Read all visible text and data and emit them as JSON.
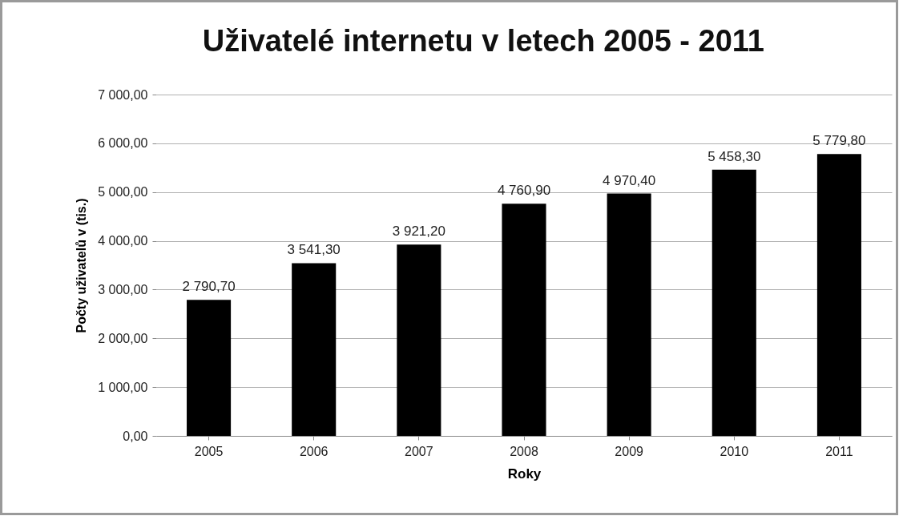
{
  "chart_data": {
    "type": "bar",
    "title": "Uživatelé internetu v letech 2005 - 2011",
    "xlabel": "Roky",
    "ylabel": "Počty uživatelů v (tis.)",
    "categories": [
      "2005",
      "2006",
      "2007",
      "2008",
      "2009",
      "2010",
      "2011"
    ],
    "values": [
      2790.7,
      3541.3,
      3921.2,
      4760.9,
      4970.4,
      5458.3,
      5779.8
    ],
    "value_labels": [
      "2 790,70",
      "3 541,30",
      "3 921,20",
      "4 760,90",
      "4 970,40",
      "5 458,30",
      "5 779,80"
    ],
    "color": "#000000",
    "ylim": [
      0,
      7000
    ],
    "yticks": [
      {
        "value": 0,
        "label": "0,00"
      },
      {
        "value": 1000,
        "label": "1 000,00"
      },
      {
        "value": 2000,
        "label": "2 000,00"
      },
      {
        "value": 3000,
        "label": "3 000,00"
      },
      {
        "value": 4000,
        "label": "4 000,00"
      },
      {
        "value": 5000,
        "label": "5 000,00"
      },
      {
        "value": 6000,
        "label": "6 000,00"
      },
      {
        "value": 7000,
        "label": "7 000,00"
      }
    ],
    "grid": "y"
  }
}
